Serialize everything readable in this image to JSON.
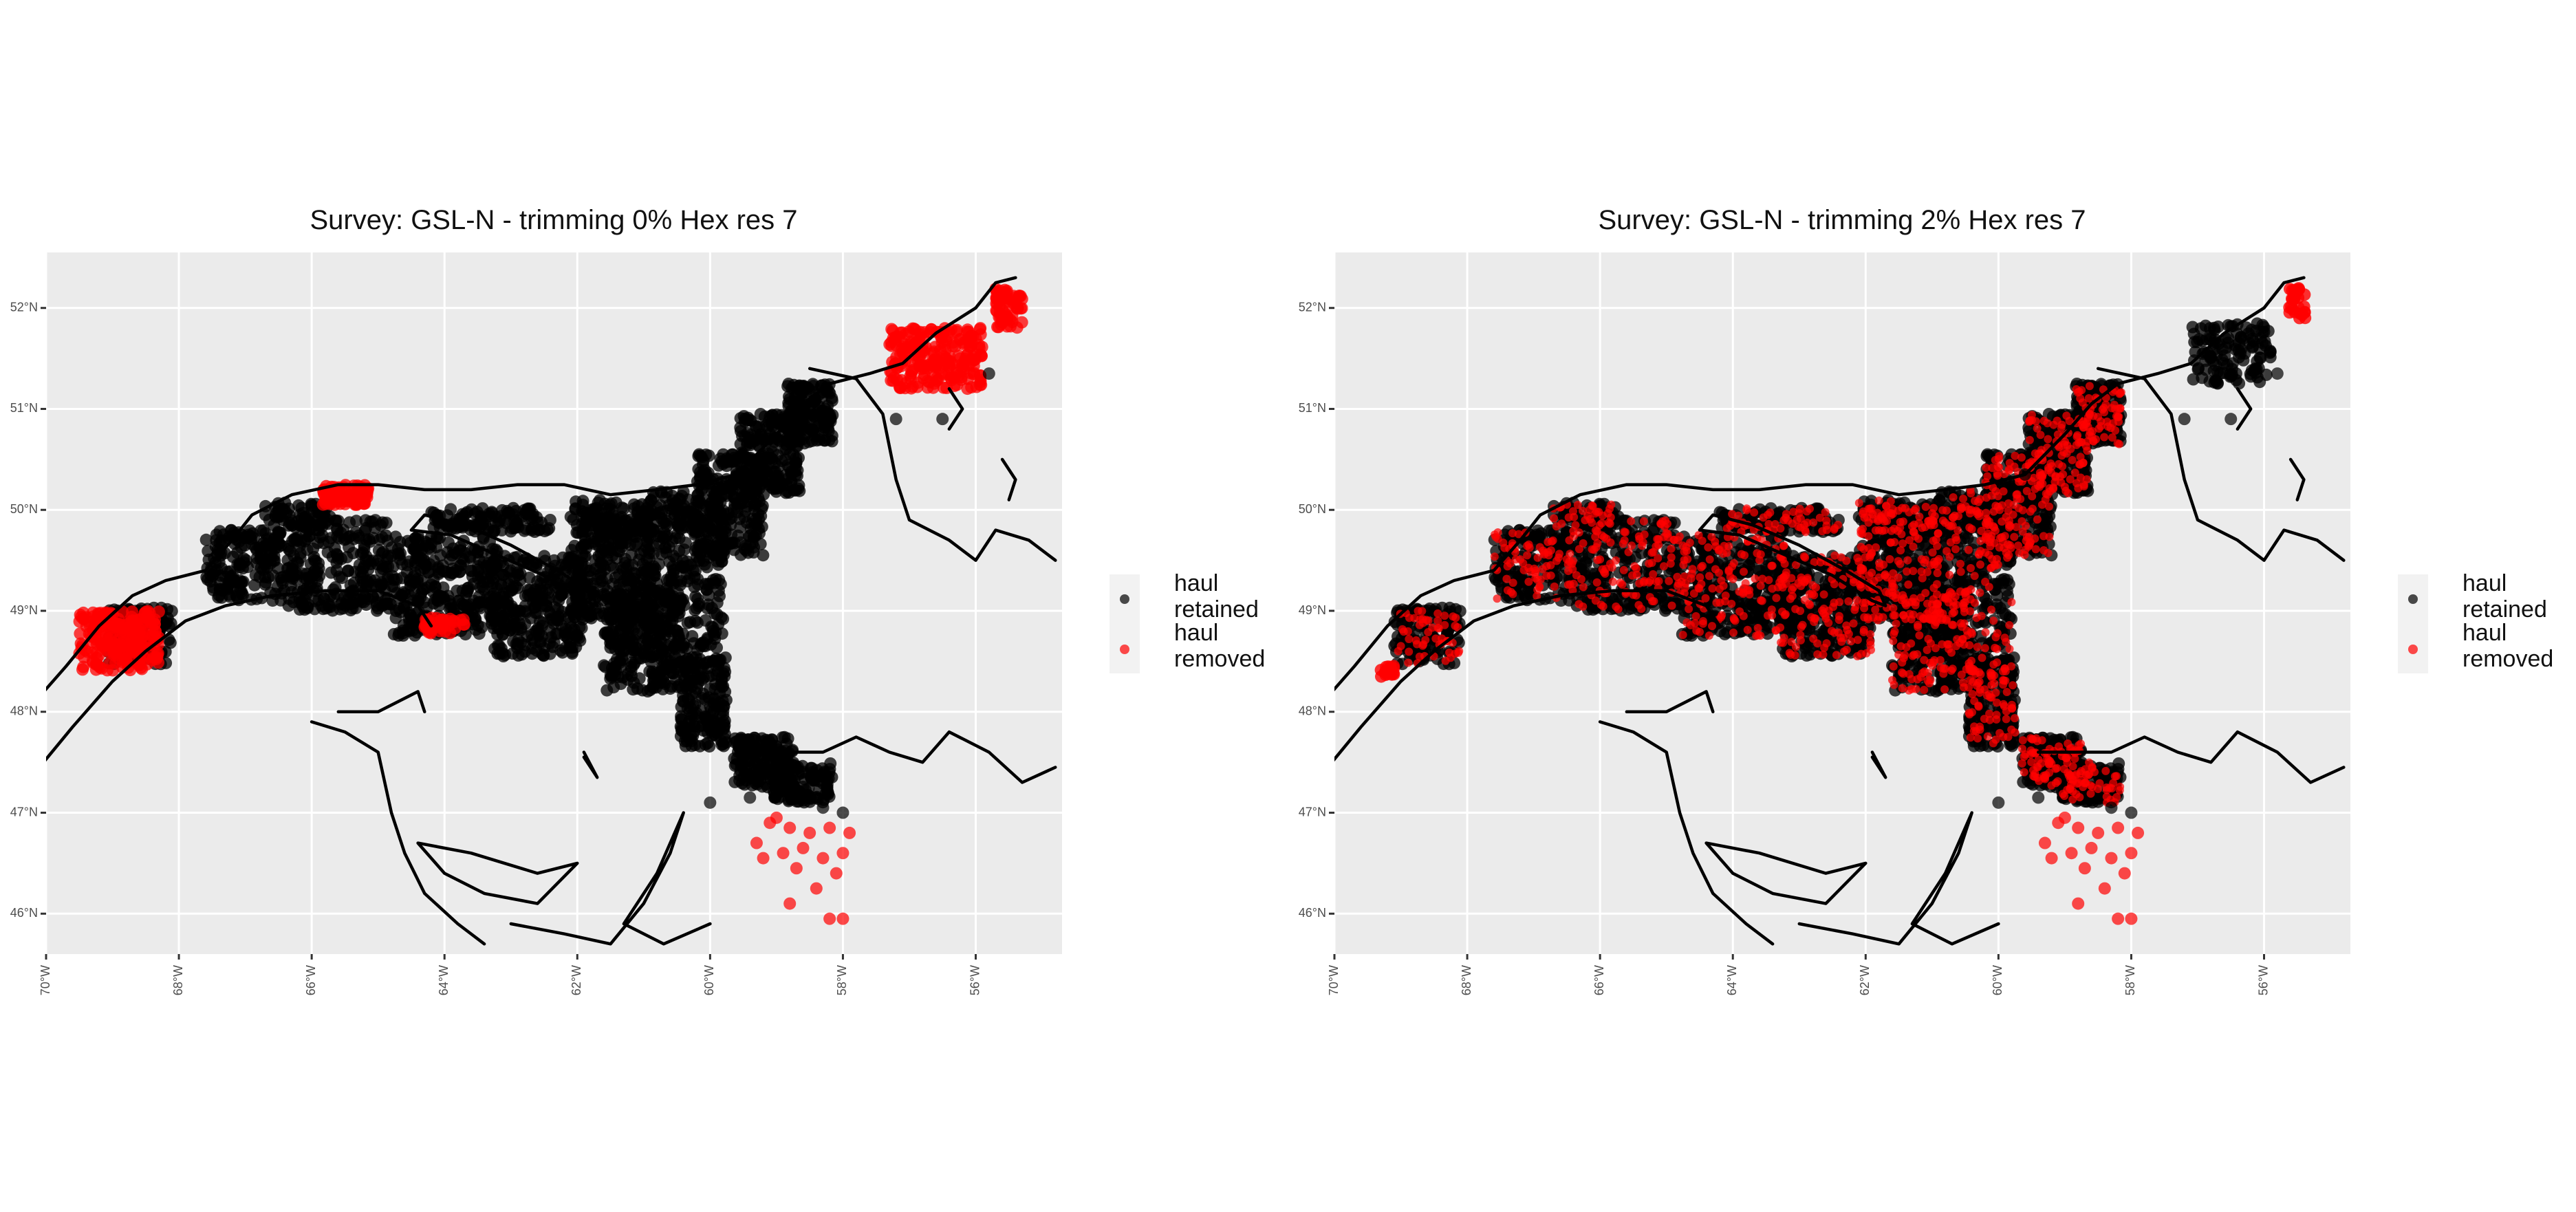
{
  "panels": [
    {
      "title": "Survey: GSL-N - trimming 0% Hex res 7",
      "trim": 0,
      "legend": [
        {
          "label": "haul retained",
          "color": "#000000"
        },
        {
          "label": "haul removed",
          "color": "#ff0000"
        }
      ]
    },
    {
      "title": "Survey: GSL-N - trimming 2% Hex res 7",
      "trim": 2,
      "legend": [
        {
          "label": "haul retained",
          "color": "#000000"
        },
        {
          "label": "haul removed",
          "color": "#ff0000"
        }
      ]
    }
  ],
  "axes": {
    "lon_range": [
      -70,
      -54.7
    ],
    "lat_range": [
      45.6,
      52.55
    ],
    "x_ticks": [
      {
        "value": -70,
        "label": "70°W"
      },
      {
        "value": -68,
        "label": "68°W"
      },
      {
        "value": -66,
        "label": "66°W"
      },
      {
        "value": -64,
        "label": "64°W"
      },
      {
        "value": -62,
        "label": "62°W"
      },
      {
        "value": -60,
        "label": "60°W"
      },
      {
        "value": -58,
        "label": "58°W"
      },
      {
        "value": -56,
        "label": "56°W"
      }
    ],
    "y_ticks": [
      {
        "value": 52,
        "label": "52°N"
      },
      {
        "value": 51,
        "label": "51°N"
      },
      {
        "value": 50,
        "label": "50°N"
      },
      {
        "value": 49,
        "label": "49°N"
      },
      {
        "value": 48,
        "label": "48°N"
      },
      {
        "value": 47,
        "label": "47°N"
      },
      {
        "value": 46,
        "label": "46°N"
      }
    ]
  },
  "colors": {
    "retained": "#000000",
    "removed": "#ff0000",
    "panel_background": "#ebebeb",
    "grid": "#ffffff"
  }
}
